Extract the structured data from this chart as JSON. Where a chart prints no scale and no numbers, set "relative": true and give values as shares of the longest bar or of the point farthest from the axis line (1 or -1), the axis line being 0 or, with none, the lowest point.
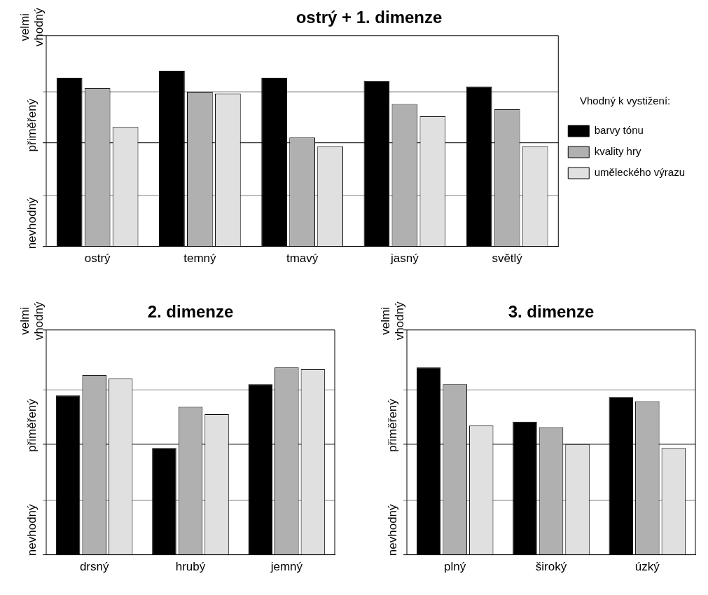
{
  "chart_data": [
    {
      "type": "bar",
      "title": "ostrý + 1. dimenze",
      "categories": [
        "ostrý",
        "temný",
        "tmavý",
        "jasný",
        "světlý"
      ],
      "relative": true,
      "series": [
        {
          "name": "barvy tónu",
          "color": "#000000",
          "values": [
            0.96,
            1,
            0.96,
            0.94,
            0.91
          ]
        },
        {
          "name": "kvality hry",
          "color": "#b0b0b0",
          "values": [
            0.9,
            0.88,
            0.62,
            0.81,
            0.78
          ]
        },
        {
          "name": "uměleckého výrazu",
          "color": "#e0e0e0",
          "values": [
            0.68,
            0.87,
            0.57,
            0.74,
            0.57
          ]
        }
      ],
      "ref_lines": [
        {
          "axis": "y",
          "value": 0.29,
          "color": "#808080"
        },
        {
          "axis": "y",
          "value": 0.59,
          "color": "#000000"
        },
        {
          "axis": "y",
          "value": 0.88,
          "color": "#808080"
        }
      ],
      "annotations": [
        "velmi vhodný",
        "přiměřený",
        "nevhodný"
      ],
      "legend": "right",
      "legend_title": "Vhodný k vystižení:"
    },
    {
      "type": "bar",
      "title": "2. dimenze",
      "categories": [
        "drsný",
        "hrubý",
        "jemný"
      ],
      "relative": true,
      "series": [
        {
          "color": "#000000",
          "values": [
            0.85,
            0.57,
            0.91
          ]
        },
        {
          "color": "#b0b0b0",
          "values": [
            0.96,
            0.79,
            1
          ]
        },
        {
          "color": "#e0e0e0",
          "values": [
            0.94,
            0.75,
            0.99
          ]
        }
      ],
      "ref_lines": [
        {
          "axis": "y",
          "value": 0.29,
          "color": "#808080"
        },
        {
          "axis": "y",
          "value": 0.59,
          "color": "#000000"
        },
        {
          "axis": "y",
          "value": 0.88,
          "color": "#808080"
        }
      ],
      "annotations": [
        "velmi vhodný",
        "přiměřený",
        "nevhodný"
      ],
      "legend": false
    },
    {
      "type": "bar",
      "title": "3. dimenze",
      "categories": [
        "plný",
        "široký",
        "úzký"
      ],
      "relative": true,
      "series": [
        {
          "color": "#000000",
          "values": [
            1,
            0.71,
            0.84
          ]
        },
        {
          "color": "#b0b0b0",
          "values": [
            0.91,
            0.68,
            0.82
          ]
        },
        {
          "color": "#e0e0e0",
          "values": [
            0.69,
            0.59,
            0.57
          ]
        }
      ],
      "ref_lines": [
        {
          "axis": "y",
          "value": 0.29,
          "color": "#808080"
        },
        {
          "axis": "y",
          "value": 0.59,
          "color": "#000000"
        },
        {
          "axis": "y",
          "value": 0.88,
          "color": "#808080"
        }
      ],
      "annotations": [
        "velmi vhodný",
        "přiměřený",
        "nevhodný"
      ],
      "legend": false
    }
  ]
}
